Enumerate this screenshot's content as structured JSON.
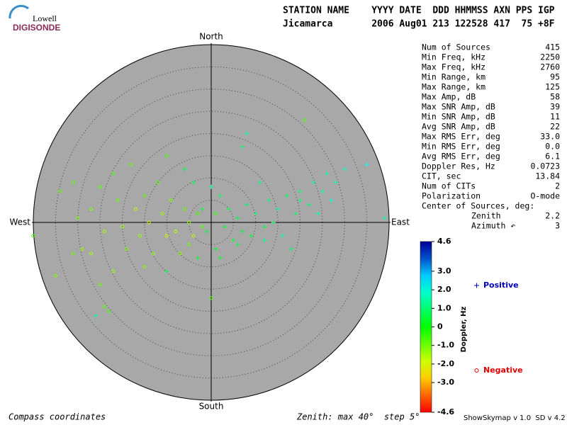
{
  "header": {
    "logo_top": "Lowell",
    "logo_bottom": "DIGISONDE",
    "columns_line": "STATION NAME    YYYY DATE  DDD HHMMSS AXN PPS IGP",
    "values_line": "Jicamarca       2006 Aug01 213 122528 417  75 +8F"
  },
  "stats": [
    {
      "label": "Num of Sources",
      "value": "415"
    },
    {
      "label": "Min Freq, kHz",
      "value": "2250"
    },
    {
      "label": "Max Freq, kHz",
      "value": "2760"
    },
    {
      "label": "Min Range, km",
      "value": "95"
    },
    {
      "label": "Max Range, km",
      "value": "125"
    },
    {
      "label": "Max Amp, dB",
      "value": "58"
    },
    {
      "label": "Max SNR Amp, dB",
      "value": "39"
    },
    {
      "label": "Min SNR Amp, dB",
      "value": "11"
    },
    {
      "label": "Avg SNR Amp, dB",
      "value": "22"
    },
    {
      "label": "Max RMS Err, deg",
      "value": "33.0"
    },
    {
      "label": "Min RMS Err, deg",
      "value": "0.0"
    },
    {
      "label": "Avg RMS Err, deg",
      "value": "6.1"
    },
    {
      "label": "Doppler Res, Hz",
      "value": "0.0723"
    },
    {
      "label": "CIT, sec",
      "value": "13.84"
    },
    {
      "label": "Num of CITs",
      "value": "2"
    },
    {
      "label": "Polarization",
      "value": "O-mode"
    },
    {
      "label": "Center of Sources, deg:",
      "value": null
    },
    {
      "label": "Zenith",
      "value": "2.2"
    },
    {
      "label": "Azimuth ↶",
      "value": "3"
    }
  ],
  "chart_data": {
    "type": "skymap",
    "compass": {
      "north": "North",
      "south": "South",
      "west": "West",
      "east": "East"
    },
    "rlim": [
      0,
      40
    ],
    "rticks": [
      5,
      10,
      15,
      20,
      25,
      30,
      35,
      40
    ],
    "colorbar": {
      "label": "Doppler, Hz",
      "lim": [
        -4.6,
        4.6
      ],
      "ticks": [
        4.6,
        {
          "value": 3,
          "label": "3.0"
        },
        {
          "value": 2,
          "label": "2.0"
        },
        {
          "value": 1,
          "label": "1.0"
        },
        0,
        {
          "value": -1,
          "label": "-1.0"
        },
        {
          "value": -2,
          "label": "-2.0"
        },
        {
          "value": -3,
          "label": "-3.0"
        },
        -4.6
      ]
    },
    "series": [
      {
        "name": "Positive",
        "marker": "+",
        "color": "#0000c0",
        "x": [
          35,
          30,
          28,
          26,
          25,
          23,
          22,
          20,
          19,
          17,
          15,
          14,
          13,
          12,
          10,
          9,
          8,
          7,
          6,
          5,
          4,
          3,
          2,
          1,
          0,
          -2,
          -4,
          -6,
          8,
          7,
          12,
          16,
          18,
          -3,
          -10,
          -26,
          20,
          24,
          27,
          39,
          11,
          6,
          -1,
          2
        ],
        "y": [
          13,
          12,
          9,
          11,
          7,
          9,
          4,
          7,
          2,
          6,
          3,
          0,
          5,
          -1,
          2,
          -3,
          4,
          -2,
          1,
          -4,
          3,
          -1,
          6,
          -6,
          8,
          3,
          9,
          12,
          20,
          17,
          -4,
          -3,
          -6,
          -8,
          -11,
          -21,
          5,
          2,
          5,
          1,
          9,
          -5,
          -2,
          -8
        ],
        "doppler": [
          2.2,
          1.8,
          1.5,
          1.4,
          1.3,
          1.6,
          1.1,
          1.2,
          0.9,
          1.0,
          1.3,
          0.8,
          1.1,
          0.7,
          1.0,
          0.6,
          0.9,
          0.5,
          0.8,
          0.6,
          0.7,
          0.5,
          0.9,
          0.4,
          1.2,
          0.6,
          0.8,
          0.7,
          1.5,
          1.0,
          1.2,
          1.4,
          0.9,
          0.5,
          0.6,
          1.3,
          1.1,
          1.7,
          1.9,
          1.6,
          1.2,
          0.7,
          0.5,
          0.4
        ]
      },
      {
        "name": "Negative",
        "marker": "o",
        "color": "#e00000",
        "x": [
          -40,
          -34,
          -31,
          -30,
          -29,
          -31,
          -27,
          -25,
          -24,
          -22,
          -21,
          -20,
          -19,
          -18,
          -17,
          -16,
          -15,
          -14,
          -13,
          -12,
          -11,
          -10,
          -9,
          -8,
          -7,
          -6,
          -5,
          -4,
          -3,
          -2,
          0,
          21,
          -25,
          -24,
          -23,
          -22,
          -35,
          -27,
          -10,
          -15,
          -5,
          1
        ],
        "y": [
          -3,
          7,
          9,
          1,
          -6,
          -7,
          3,
          8,
          -2,
          11,
          5,
          -1,
          -6,
          13,
          3,
          -3,
          6,
          0,
          -7,
          9,
          2,
          -3,
          5,
          -2,
          -7,
          3,
          0,
          -3,
          2,
          -1,
          -17,
          23,
          -14,
          -19,
          -20,
          -11,
          -12,
          -7,
          15,
          -10,
          -5,
          2
        ],
        "doppler": [
          -0.6,
          -0.8,
          -0.7,
          -1.1,
          -1.3,
          -0.9,
          -1.2,
          -0.8,
          -1.4,
          -0.7,
          -1.0,
          -1.5,
          -1.1,
          -0.9,
          -1.6,
          -1.3,
          -0.8,
          -1.8,
          -1.2,
          -0.7,
          -1.4,
          -1.9,
          -1.0,
          -1.6,
          -1.2,
          -0.9,
          -1.4,
          -1.7,
          -0.6,
          -0.9,
          -0.8,
          -0.7,
          -1.0,
          -0.8,
          -0.6,
          -1.3,
          -1.1,
          -1.5,
          -0.7,
          -1.2,
          -0.9,
          -0.5
        ]
      }
    ],
    "footer_left": "Compass coordinates",
    "footer_center": "Zenith: max 40°  step 5°",
    "footer_right": "ShowSkymap v 1.0  SD v 4.2"
  }
}
